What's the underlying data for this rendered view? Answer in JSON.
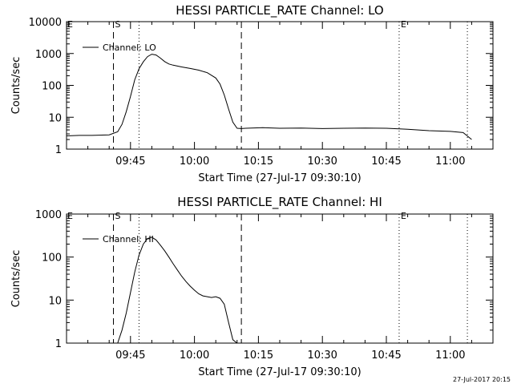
{
  "chart_data": [
    {
      "type": "line",
      "title": "HESSI PARTICLE_RATE Channel: LO",
      "xlabel": "Start Time (27-Jul-17 09:30:10)",
      "ylabel": "Counts/sec",
      "yscale": "log",
      "ylim": [
        1,
        10000
      ],
      "xlim": [
        "09:30",
        "11:10"
      ],
      "x_ticks": [
        "09:45",
        "10:00",
        "10:15",
        "10:30",
        "10:45",
        "11:00"
      ],
      "y_ticks": [
        "1",
        "10",
        "100",
        "1000",
        "10000"
      ],
      "legend": "top-left",
      "series": [
        {
          "name": "Channel: LO",
          "x": [
            "09:30",
            "09:33",
            "09:36",
            "09:40",
            "09:42",
            "09:43",
            "09:44",
            "09:45",
            "09:46",
            "09:47",
            "09:48",
            "09:49",
            "09:50",
            "09:51",
            "09:52",
            "09:53",
            "09:54",
            "09:55",
            "09:57",
            "09:59",
            "10:01",
            "10:03",
            "10:05",
            "10:06",
            "10:07",
            "10:08",
            "10:09",
            "10:10",
            "10:11",
            "10:12",
            "10:16",
            "10:20",
            "10:25",
            "10:30",
            "10:35",
            "10:40",
            "10:45",
            "10:50",
            "10:55",
            "11:00",
            "11:03",
            "11:05"
          ],
          "y": [
            2.6,
            2.7,
            2.7,
            2.8,
            3.5,
            6,
            15,
            45,
            150,
            330,
            550,
            800,
            950,
            900,
            720,
            560,
            470,
            430,
            380,
            340,
            300,
            250,
            170,
            110,
            50,
            18,
            7,
            4.5,
            4.4,
            4.5,
            4.7,
            4.5,
            4.6,
            4.4,
            4.5,
            4.6,
            4.5,
            4.2,
            3.8,
            3.6,
            3.3,
            2
          ]
        }
      ],
      "markers": [
        {
          "label": "S",
          "x": "09:41",
          "style": "dashed"
        },
        {
          "x": "09:47",
          "style": "dotted"
        },
        {
          "x": "10:11",
          "style": "dashed"
        },
        {
          "label": "E",
          "x": "10:48",
          "style": "dotted"
        },
        {
          "x": "11:04",
          "style": "dotted"
        }
      ]
    },
    {
      "type": "line",
      "title": "HESSI PARTICLE_RATE Channel: HI",
      "xlabel": "Start Time (27-Jul-17 09:30:10)",
      "ylabel": "Counts/sec",
      "yscale": "log",
      "ylim": [
        1,
        1000
      ],
      "xlim": [
        "09:30",
        "11:10"
      ],
      "x_ticks": [
        "09:45",
        "10:00",
        "10:15",
        "10:30",
        "10:45",
        "11:00"
      ],
      "y_ticks": [
        "1",
        "10",
        "100",
        "1000"
      ],
      "legend": "top-left",
      "series": [
        {
          "name": "Channel: HI",
          "x": [
            "09:42",
            "09:43",
            "09:44",
            "09:45",
            "09:46",
            "09:47",
            "09:48",
            "09:49",
            "09:50",
            "09:51",
            "09:52",
            "09:53",
            "09:54",
            "09:55",
            "09:56",
            "09:57",
            "09:58",
            "09:59",
            "10:00",
            "10:01",
            "10:02",
            "10:03",
            "10:04",
            "10:05",
            "10:06",
            "10:07",
            "10:08",
            "10:09",
            "10:10"
          ],
          "y": [
            1,
            2,
            5,
            15,
            45,
            110,
            200,
            270,
            290,
            250,
            190,
            140,
            100,
            70,
            50,
            36,
            27,
            21,
            17,
            14,
            12.5,
            12,
            11.5,
            12,
            11,
            8,
            3,
            1.2,
            1
          ]
        }
      ],
      "markers": [
        {
          "label": "S",
          "x": "09:41",
          "style": "dashed"
        },
        {
          "x": "09:47",
          "style": "dotted"
        },
        {
          "x": "10:11",
          "style": "dashed"
        },
        {
          "label": "E",
          "x": "10:48",
          "style": "dotted"
        },
        {
          "x": "11:04",
          "style": "dotted"
        }
      ]
    }
  ],
  "timestamp": "27-Jul-2017 20:15"
}
